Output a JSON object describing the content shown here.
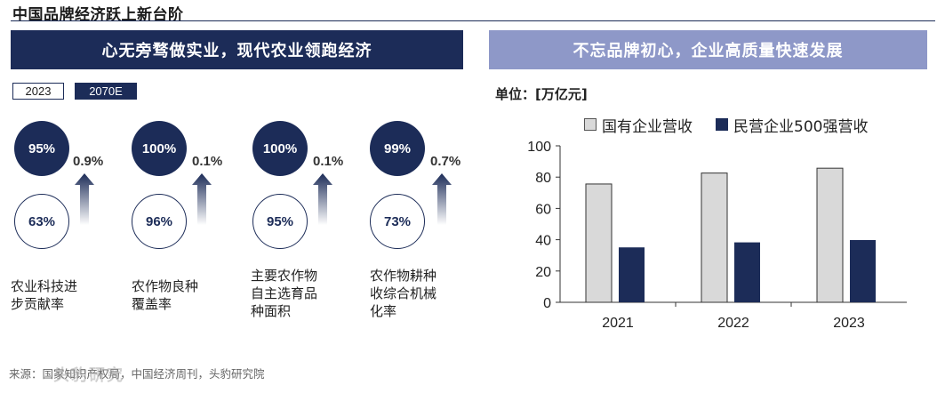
{
  "header": {
    "title": "中国品牌经济跃上新台阶"
  },
  "left_panel": {
    "banner": "心无旁骛做实业，现代农业领跑经济",
    "legend": {
      "year_a": "2023",
      "year_b": "2070E"
    },
    "metrics": [
      {
        "value_2070": "95%",
        "value_2023": "63%",
        "delta": "0.9%",
        "label": "农业科技进步贡献率",
        "label_lines": [
          "农业科技进",
          "步贡献率"
        ]
      },
      {
        "value_2070": "100%",
        "value_2023": "96%",
        "delta": "0.1%",
        "label": "农作物良种覆盖率",
        "label_lines": [
          "农作物良种",
          "覆盖率"
        ]
      },
      {
        "value_2070": "100%",
        "value_2023": "95%",
        "delta": "0.1%",
        "label": "主要农作物自主选育品种面积",
        "label_lines": [
          "主要农作物",
          "自主选育品",
          "种面积"
        ]
      },
      {
        "value_2070": "99%",
        "value_2023": "73%",
        "delta": "0.7%",
        "label": "农作物耕种收综合机械化率",
        "label_lines": [
          "农作物耕种",
          "收综合机械",
          "化率"
        ]
      }
    ],
    "colors": {
      "dark": "#1c2c58"
    }
  },
  "right_panel": {
    "banner": "不忘品牌初心，企业高质量快速发展",
    "unit": "单位：[万亿元]"
  },
  "chart_data": {
    "type": "bar",
    "title": "",
    "categories": [
      "2021",
      "2022",
      "2023"
    ],
    "series": [
      {
        "name": "国有企业营收",
        "values": [
          75.6,
          82.6,
          85.7
        ],
        "color": "#d9d9d9"
      },
      {
        "name": "民营企业500强营收",
        "values": [
          35.1,
          38.3,
          39.8
        ],
        "color": "#1c2c58"
      }
    ],
    "ylim": [
      0,
      100
    ],
    "yticks": [
      0,
      20,
      40,
      60,
      80,
      100
    ],
    "xlabel": "",
    "ylabel": "",
    "legend_position": "top",
    "grid": false
  },
  "footer": {
    "source": "来源：国家知识产权局，中国经济周刊，头豹研究院",
    "watermark": "头豹研究"
  }
}
